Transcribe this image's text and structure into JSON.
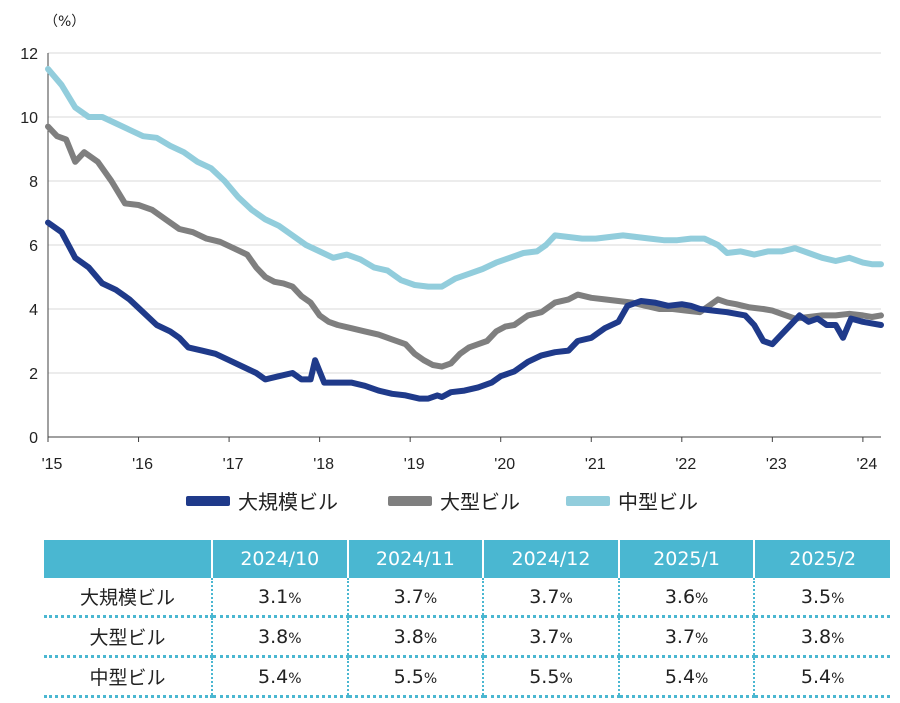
{
  "chart_data": {
    "type": "line",
    "unit_label": "（%）",
    "ylim": [
      0,
      12
    ],
    "y_ticks": [
      0,
      2,
      4,
      6,
      8,
      10,
      12
    ],
    "x_tick_labels": [
      "'15",
      "'16",
      "'17",
      "'18",
      "'19",
      "'20",
      "'21",
      "'22",
      "'23",
      "'24"
    ],
    "xlim": [
      2015.0,
      2024.2
    ],
    "grid": true,
    "legend_position": "bottom",
    "series": [
      {
        "name": "大規模ビル",
        "color": "#1f3a8a",
        "points": [
          [
            2015.0,
            6.7
          ],
          [
            2015.15,
            6.4
          ],
          [
            2015.3,
            5.6
          ],
          [
            2015.45,
            5.3
          ],
          [
            2015.6,
            4.8
          ],
          [
            2015.75,
            4.6
          ],
          [
            2015.9,
            4.3
          ],
          [
            2016.05,
            3.9
          ],
          [
            2016.2,
            3.5
          ],
          [
            2016.35,
            3.3
          ],
          [
            2016.45,
            3.1
          ],
          [
            2016.55,
            2.8
          ],
          [
            2016.7,
            2.7
          ],
          [
            2016.85,
            2.6
          ],
          [
            2017.0,
            2.4
          ],
          [
            2017.15,
            2.2
          ],
          [
            2017.3,
            2.0
          ],
          [
            2017.4,
            1.8
          ],
          [
            2017.55,
            1.9
          ],
          [
            2017.7,
            2.0
          ],
          [
            2017.8,
            1.8
          ],
          [
            2017.9,
            1.8
          ],
          [
            2017.95,
            2.4
          ],
          [
            2018.05,
            1.7
          ],
          [
            2018.2,
            1.7
          ],
          [
            2018.35,
            1.7
          ],
          [
            2018.5,
            1.6
          ],
          [
            2018.65,
            1.45
          ],
          [
            2018.8,
            1.35
          ],
          [
            2018.95,
            1.3
          ],
          [
            2019.1,
            1.2
          ],
          [
            2019.2,
            1.2
          ],
          [
            2019.3,
            1.3
          ],
          [
            2019.35,
            1.25
          ],
          [
            2019.45,
            1.4
          ],
          [
            2019.6,
            1.45
          ],
          [
            2019.75,
            1.55
          ],
          [
            2019.9,
            1.7
          ],
          [
            2020.0,
            1.9
          ],
          [
            2020.15,
            2.05
          ],
          [
            2020.3,
            2.35
          ],
          [
            2020.45,
            2.55
          ],
          [
            2020.6,
            2.65
          ],
          [
            2020.75,
            2.7
          ],
          [
            2020.85,
            3.0
          ],
          [
            2021.0,
            3.1
          ],
          [
            2021.15,
            3.4
          ],
          [
            2021.3,
            3.6
          ],
          [
            2021.4,
            4.1
          ],
          [
            2021.55,
            4.25
          ],
          [
            2021.7,
            4.2
          ],
          [
            2021.85,
            4.1
          ],
          [
            2022.0,
            4.15
          ],
          [
            2022.1,
            4.1
          ],
          [
            2022.2,
            4.0
          ],
          [
            2022.35,
            3.95
          ],
          [
            2022.5,
            3.9
          ],
          [
            2022.6,
            3.85
          ],
          [
            2022.7,
            3.8
          ],
          [
            2022.8,
            3.5
          ],
          [
            2022.9,
            3.0
          ],
          [
            2023.0,
            2.9
          ],
          [
            2023.1,
            3.2
          ],
          [
            2023.2,
            3.5
          ],
          [
            2023.3,
            3.8
          ],
          [
            2023.4,
            3.6
          ],
          [
            2023.5,
            3.7
          ],
          [
            2023.6,
            3.5
          ],
          [
            2023.7,
            3.5
          ],
          [
            2023.78,
            3.1
          ],
          [
            2023.87,
            3.7
          ],
          [
            2024.0,
            3.6
          ],
          [
            2024.1,
            3.55
          ],
          [
            2024.2,
            3.5
          ]
        ]
      },
      {
        "name": "大型ビル",
        "color": "#7f7f7f",
        "points": [
          [
            2015.0,
            9.7
          ],
          [
            2015.1,
            9.4
          ],
          [
            2015.2,
            9.3
          ],
          [
            2015.3,
            8.6
          ],
          [
            2015.4,
            8.9
          ],
          [
            2015.55,
            8.6
          ],
          [
            2015.7,
            8.0
          ],
          [
            2015.85,
            7.3
          ],
          [
            2016.0,
            7.25
          ],
          [
            2016.15,
            7.1
          ],
          [
            2016.3,
            6.8
          ],
          [
            2016.45,
            6.5
          ],
          [
            2016.6,
            6.4
          ],
          [
            2016.75,
            6.2
          ],
          [
            2016.9,
            6.1
          ],
          [
            2017.05,
            5.9
          ],
          [
            2017.2,
            5.7
          ],
          [
            2017.3,
            5.3
          ],
          [
            2017.4,
            5.0
          ],
          [
            2017.5,
            4.85
          ],
          [
            2017.6,
            4.8
          ],
          [
            2017.7,
            4.7
          ],
          [
            2017.8,
            4.4
          ],
          [
            2017.9,
            4.2
          ],
          [
            2018.0,
            3.8
          ],
          [
            2018.1,
            3.6
          ],
          [
            2018.2,
            3.5
          ],
          [
            2018.35,
            3.4
          ],
          [
            2018.5,
            3.3
          ],
          [
            2018.65,
            3.2
          ],
          [
            2018.8,
            3.05
          ],
          [
            2018.95,
            2.9
          ],
          [
            2019.05,
            2.6
          ],
          [
            2019.15,
            2.4
          ],
          [
            2019.25,
            2.25
          ],
          [
            2019.35,
            2.2
          ],
          [
            2019.45,
            2.3
          ],
          [
            2019.55,
            2.6
          ],
          [
            2019.65,
            2.8
          ],
          [
            2019.75,
            2.9
          ],
          [
            2019.85,
            3.0
          ],
          [
            2019.95,
            3.3
          ],
          [
            2020.05,
            3.45
          ],
          [
            2020.15,
            3.5
          ],
          [
            2020.3,
            3.8
          ],
          [
            2020.45,
            3.9
          ],
          [
            2020.6,
            4.2
          ],
          [
            2020.75,
            4.3
          ],
          [
            2020.85,
            4.45
          ],
          [
            2021.0,
            4.35
          ],
          [
            2021.15,
            4.3
          ],
          [
            2021.3,
            4.25
          ],
          [
            2021.45,
            4.2
          ],
          [
            2021.6,
            4.1
          ],
          [
            2021.75,
            4.0
          ],
          [
            2021.9,
            4.0
          ],
          [
            2022.05,
            3.95
          ],
          [
            2022.2,
            3.9
          ],
          [
            2022.3,
            4.1
          ],
          [
            2022.4,
            4.3
          ],
          [
            2022.5,
            4.2
          ],
          [
            2022.6,
            4.15
          ],
          [
            2022.75,
            4.05
          ],
          [
            2022.9,
            4.0
          ],
          [
            2023.0,
            3.95
          ],
          [
            2023.1,
            3.85
          ],
          [
            2023.25,
            3.7
          ],
          [
            2023.4,
            3.75
          ],
          [
            2023.55,
            3.8
          ],
          [
            2023.7,
            3.8
          ],
          [
            2023.85,
            3.85
          ],
          [
            2024.0,
            3.8
          ],
          [
            2024.1,
            3.75
          ],
          [
            2024.2,
            3.8
          ]
        ]
      },
      {
        "name": "中型ビル",
        "color": "#92cddc",
        "points": [
          [
            2015.0,
            11.5
          ],
          [
            2015.15,
            11.0
          ],
          [
            2015.3,
            10.3
          ],
          [
            2015.45,
            10.0
          ],
          [
            2015.6,
            10.0
          ],
          [
            2015.75,
            9.8
          ],
          [
            2015.9,
            9.6
          ],
          [
            2016.05,
            9.4
          ],
          [
            2016.2,
            9.35
          ],
          [
            2016.35,
            9.1
          ],
          [
            2016.5,
            8.9
          ],
          [
            2016.65,
            8.6
          ],
          [
            2016.8,
            8.4
          ],
          [
            2016.95,
            8.0
          ],
          [
            2017.1,
            7.5
          ],
          [
            2017.25,
            7.1
          ],
          [
            2017.4,
            6.8
          ],
          [
            2017.55,
            6.6
          ],
          [
            2017.7,
            6.3
          ],
          [
            2017.85,
            6.0
          ],
          [
            2018.0,
            5.8
          ],
          [
            2018.15,
            5.6
          ],
          [
            2018.3,
            5.7
          ],
          [
            2018.45,
            5.55
          ],
          [
            2018.6,
            5.3
          ],
          [
            2018.75,
            5.2
          ],
          [
            2018.9,
            4.9
          ],
          [
            2019.05,
            4.75
          ],
          [
            2019.2,
            4.7
          ],
          [
            2019.35,
            4.7
          ],
          [
            2019.5,
            4.95
          ],
          [
            2019.65,
            5.1
          ],
          [
            2019.8,
            5.25
          ],
          [
            2019.95,
            5.45
          ],
          [
            2020.1,
            5.6
          ],
          [
            2020.25,
            5.75
          ],
          [
            2020.4,
            5.8
          ],
          [
            2020.5,
            6.0
          ],
          [
            2020.6,
            6.3
          ],
          [
            2020.75,
            6.25
          ],
          [
            2020.9,
            6.2
          ],
          [
            2021.05,
            6.2
          ],
          [
            2021.2,
            6.25
          ],
          [
            2021.35,
            6.3
          ],
          [
            2021.5,
            6.25
          ],
          [
            2021.65,
            6.2
          ],
          [
            2021.8,
            6.15
          ],
          [
            2021.95,
            6.15
          ],
          [
            2022.1,
            6.2
          ],
          [
            2022.25,
            6.2
          ],
          [
            2022.4,
            6.0
          ],
          [
            2022.5,
            5.75
          ],
          [
            2022.65,
            5.8
          ],
          [
            2022.8,
            5.7
          ],
          [
            2022.95,
            5.8
          ],
          [
            2023.1,
            5.8
          ],
          [
            2023.25,
            5.9
          ],
          [
            2023.4,
            5.75
          ],
          [
            2023.55,
            5.6
          ],
          [
            2023.7,
            5.5
          ],
          [
            2023.85,
            5.6
          ],
          [
            2024.0,
            5.45
          ],
          [
            2024.1,
            5.4
          ],
          [
            2024.2,
            5.4
          ]
        ]
      }
    ]
  },
  "table": {
    "columns": [
      "2024/10",
      "2024/11",
      "2024/12",
      "2025/1",
      "2025/2"
    ],
    "rows": [
      {
        "label": "大規模ビル",
        "values": [
          "3.1",
          "3.7",
          "3.7",
          "3.6",
          "3.5"
        ]
      },
      {
        "label": "大型ビル",
        "values": [
          "3.8",
          "3.8",
          "3.7",
          "3.7",
          "3.8"
        ]
      },
      {
        "label": "中型ビル",
        "values": [
          "5.4",
          "5.5",
          "5.5",
          "5.4",
          "5.4"
        ]
      }
    ],
    "pct_symbol": "%"
  },
  "colors": {
    "header_bg": "#4ab7d1",
    "grid": "#d9d9d9",
    "axis": "#404040"
  }
}
